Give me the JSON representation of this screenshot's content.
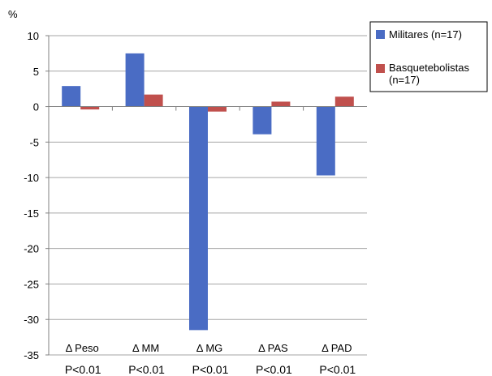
{
  "chart_data": {
    "type": "bar",
    "ylabel": "%",
    "ylim": [
      -35,
      10
    ],
    "yticks": [
      10,
      5,
      0,
      -5,
      -10,
      -15,
      -20,
      -25,
      -30,
      -35
    ],
    "grid": true,
    "legend_position": "right",
    "categories": [
      "Δ Peso",
      "Δ MM",
      "Δ MG",
      "Δ PAS",
      "Δ PAD"
    ],
    "p_values": [
      "P<0.01",
      "P<0.01",
      "P<0.01",
      "P<0.01",
      "P<0.01"
    ],
    "series": [
      {
        "name": "Militares (n=17)",
        "color": "#4a6cc4",
        "values": [
          2.9,
          7.5,
          -31.5,
          -3.9,
          -9.7
        ]
      },
      {
        "name": "Basquetebolistas (n=17)",
        "legend_lines": [
          "Basquetebolistas",
          "(n=17)"
        ],
        "color": "#c0504d",
        "values": [
          -0.4,
          1.7,
          -0.7,
          0.7,
          1.4
        ]
      }
    ]
  }
}
